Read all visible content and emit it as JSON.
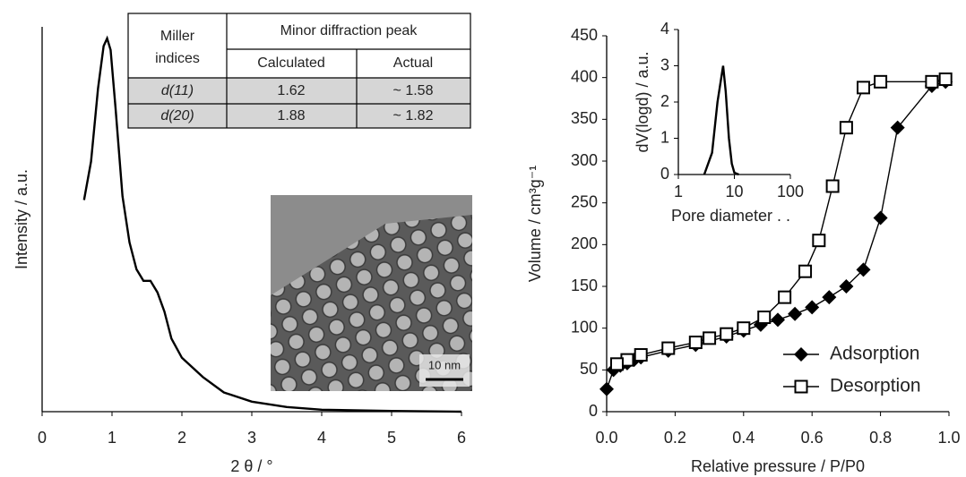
{
  "chart_data": [
    {
      "type": "line",
      "xlabel": "2 θ / °",
      "ylabel": "Intensity / a.u.",
      "xlim": [
        0,
        6
      ],
      "xticks": [
        0,
        1,
        2,
        3,
        4,
        5,
        6
      ],
      "ylim": [
        0,
        100
      ],
      "series": [
        {
          "color": "#000000",
          "x": [
            0.6,
            0.7,
            0.8,
            0.88,
            0.93,
            0.98,
            1.05,
            1.15,
            1.25,
            1.35,
            1.45,
            1.55,
            1.65,
            1.75,
            1.85,
            2.0,
            2.3,
            2.6,
            3.0,
            3.5,
            4.0,
            5.0,
            6.0
          ],
          "values": [
            55,
            65,
            84,
            95,
            97,
            94,
            79,
            56,
            44,
            37,
            34,
            34,
            31,
            26,
            19,
            14,
            9,
            5,
            2.6,
            1.2,
            0.5,
            0.2,
            0
          ]
        }
      ],
      "inset_table": {
        "corner_header": [
          "Miller",
          "indices"
        ],
        "group_header": "Minor diffraction peak",
        "columns": [
          "Calculated",
          "Actual"
        ],
        "rows": [
          [
            "d(11)",
            "1.62",
            "~ 1.58"
          ],
          [
            "d(20)",
            "1.88",
            "~ 1.82"
          ]
        ]
      },
      "image_scale_label": "10 nm"
    },
    {
      "type": "scatter",
      "xlabel": "Relative pressure / P/P0",
      "ylabel": "Volume / cm³g⁻¹",
      "xlim": [
        0,
        1
      ],
      "xticks": [
        {
          "value": 0,
          "label": "0.0"
        },
        0.2,
        0.4,
        0.6,
        0.8,
        {
          "value": 1,
          "label": "1.0"
        }
      ],
      "ylim": [
        0,
        450
      ],
      "yticks": [
        0,
        50,
        100,
        150,
        200,
        250,
        300,
        350,
        400,
        450
      ],
      "legend": "lower right",
      "series": [
        {
          "name": "Adsorption",
          "color": "#000000",
          "marker": "diamond",
          "x": [
            0.0,
            0.02,
            0.04,
            0.06,
            0.08,
            0.1,
            0.18,
            0.26,
            0.35,
            0.4,
            0.45,
            0.5,
            0.55,
            0.6,
            0.65,
            0.7,
            0.75,
            0.8,
            0.85,
            0.95,
            0.99
          ],
          "values": [
            27,
            50,
            55,
            58,
            62,
            65,
            73,
            80,
            90,
            97,
            104,
            110,
            117,
            125,
            137,
            150,
            170,
            232,
            340,
            390,
            395
          ]
        },
        {
          "name": "Desorption",
          "color": "#000000",
          "marker": "square",
          "x": [
            0.99,
            0.95,
            0.8,
            0.75,
            0.7,
            0.66,
            0.62,
            0.58,
            0.52,
            0.46,
            0.4,
            0.35,
            0.3,
            0.26,
            0.18,
            0.1,
            0.06,
            0.03
          ],
          "values": [
            398,
            395,
            395,
            388,
            340,
            270,
            205,
            168,
            137,
            113,
            100,
            93,
            88,
            83,
            76,
            68,
            62,
            57
          ]
        }
      ]
    },
    {
      "type": "line",
      "xlabel": "Pore diameter . .",
      "ylabel": "dV(logd) / a.u.",
      "xlog": true,
      "xlim": [
        1,
        100
      ],
      "xticks": [
        1,
        10,
        100
      ],
      "ylim": [
        0,
        4
      ],
      "yticks": [
        0,
        1,
        2,
        3,
        4
      ],
      "series": [
        {
          "color": "#000000",
          "x": [
            2.9,
            4,
            5,
            6.3,
            7,
            8,
            9,
            10,
            12
          ],
          "values": [
            0,
            0.6,
            2,
            3,
            2.3,
            1,
            0.3,
            0.05,
            0
          ]
        }
      ]
    }
  ]
}
